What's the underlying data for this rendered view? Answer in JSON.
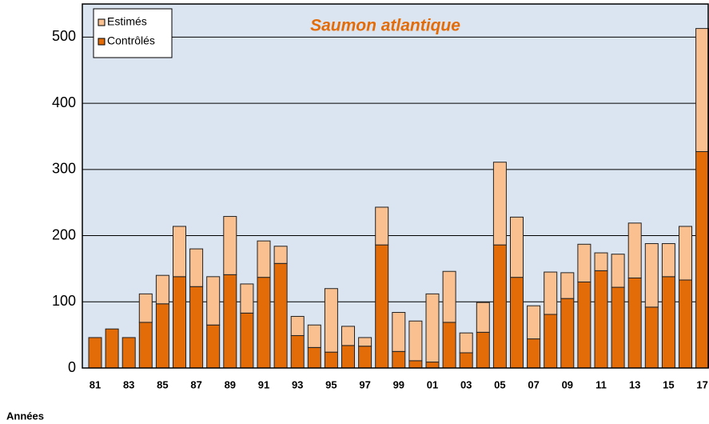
{
  "chart_data": {
    "type": "stacked_bar",
    "title": "Saumon atlantique",
    "x_label": "Années",
    "categories": [
      "81",
      null,
      "83",
      null,
      "85",
      null,
      "87",
      null,
      "89",
      null,
      "91",
      null,
      "93",
      null,
      "95",
      null,
      "97",
      null,
      "99",
      null,
      "01",
      null,
      "03",
      null,
      "05",
      null,
      "07",
      null,
      "09",
      null,
      "11",
      null,
      "13",
      null,
      "15",
      null,
      "17"
    ],
    "series": [
      {
        "name": "Contrôlés",
        "color": "#e36c09",
        "values": [
          46,
          59,
          46,
          69,
          97,
          138,
          123,
          65,
          141,
          83,
          137,
          158,
          49,
          31,
          24,
          34,
          33,
          186,
          25,
          11,
          9,
          69,
          23,
          54,
          186,
          137,
          44,
          81,
          105,
          130,
          147,
          122,
          136,
          92,
          138,
          133,
          327
        ]
      },
      {
        "name": "Estimés",
        "color": "#fac090",
        "values": [
          0,
          0,
          0,
          43,
          43,
          76,
          57,
          73,
          88,
          44,
          55,
          26,
          29,
          34,
          96,
          29,
          13,
          57,
          59,
          60,
          103,
          77,
          30,
          45,
          125,
          91,
          50,
          64,
          39,
          57,
          27,
          50,
          83,
          96,
          50,
          81,
          186
        ]
      }
    ],
    "ylim": [
      0,
      550
    ],
    "yticks": [
      0,
      100,
      200,
      300,
      400,
      500
    ],
    "grid": true,
    "legend": "upper left"
  }
}
